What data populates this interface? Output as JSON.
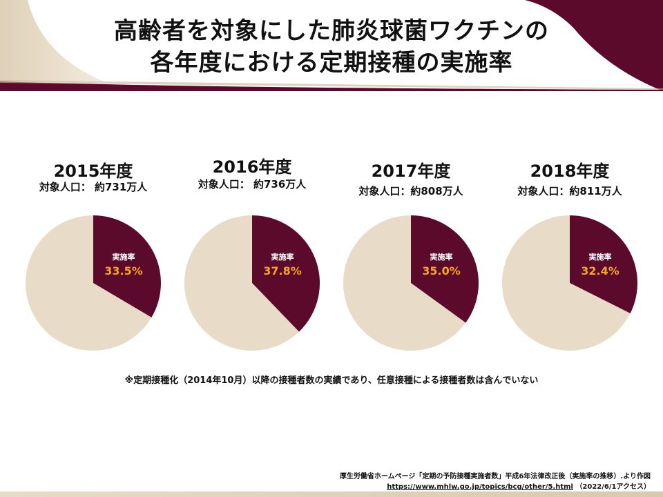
{
  "title": {
    "line1": "高齢者を対象にした肺炎球菌ワクチンの",
    "line2": "各年度における定期接種の実施率"
  },
  "colors": {
    "accent": "#5b0a2c",
    "remainder": "#e8dcc8",
    "value_text": "#f5a623",
    "label_text": "#ffffff",
    "header_beige": "#e6d9c3"
  },
  "chart_data": [
    {
      "type": "pie",
      "title": "2015年度",
      "subtitle": "対象人口： 約731万人",
      "slice_label": "実施率",
      "value_label": "33.5%",
      "values": [
        33.5,
        66.5
      ]
    },
    {
      "type": "pie",
      "title": "2016年度",
      "subtitle": "対象人口： 約736万人",
      "slice_label": "実施率",
      "value_label": "37.8%",
      "values": [
        37.8,
        62.2
      ]
    },
    {
      "type": "pie",
      "title": "2017年度",
      "subtitle": "対象人口：約808万人",
      "slice_label": "実施率",
      "value_label": "35.0%",
      "values": [
        35.0,
        65.0
      ]
    },
    {
      "type": "pie",
      "title": "2018年度",
      "subtitle": "対象人口：約811万人",
      "slice_label": "実施率",
      "value_label": "32.4%",
      "values": [
        32.4,
        67.6
      ]
    }
  ],
  "note": "※定期接種化（2014年10月）以降の接種者数の実績であり、任意接種による接種者数は含んでいない",
  "source": {
    "line1": "厚生労働省ホームページ「定期の予防接種実施者数」平成6年法律改正後（実施率の推移）.より作図",
    "url": "https://www.mhlw.go.jp/topics/bcg/other/5.html",
    "access": "（2022/6/1アクセス）"
  }
}
